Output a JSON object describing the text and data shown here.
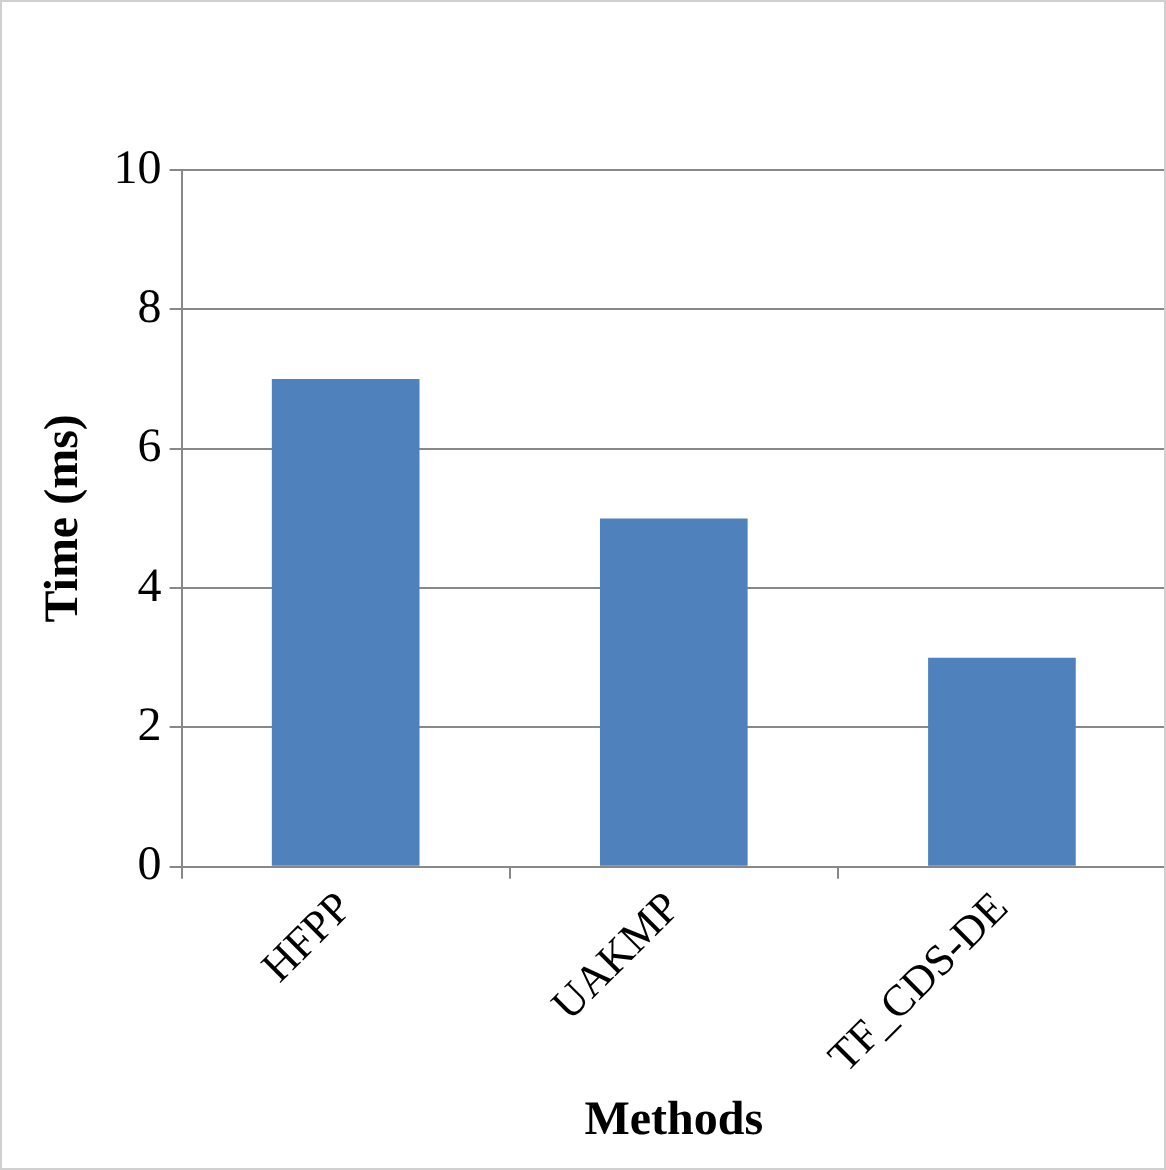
{
  "chart_data": {
    "type": "bar",
    "xlabel": "Methods",
    "ylabel": "Time (ms)",
    "categories": [
      "HFPP",
      "UAKMP",
      "TF_CDS-DE"
    ],
    "values": [
      7,
      5,
      3
    ],
    "color": "#4f81bd",
    "ylim": [
      0,
      10
    ],
    "yticks": [
      0,
      2,
      4,
      6,
      8,
      10
    ],
    "grid": "y",
    "legend": false
  }
}
